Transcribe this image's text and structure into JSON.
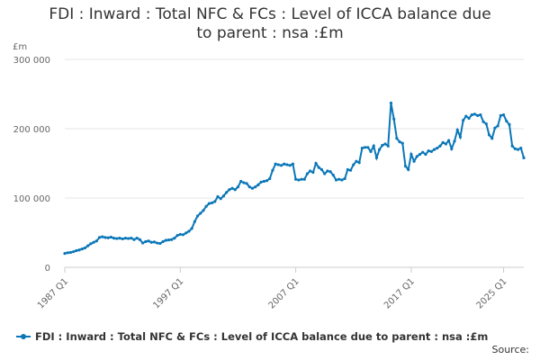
{
  "chart_data": {
    "type": "line",
    "title_line1": "FDI : Inward : Total NFC & FCs : Level of ICCA balance due",
    "title_line2": "to parent : nsa :£m",
    "ylabel": "£m",
    "ylim": [
      0,
      300000
    ],
    "yticks": [
      0,
      100000,
      200000,
      300000
    ],
    "ytick_labels": [
      "0",
      "100 000",
      "200 000",
      "300 000"
    ],
    "xtick_labels": [
      "1987 Q1",
      "1997 Q1",
      "2007 Q1",
      "2017 Q1",
      "2025 Q1"
    ],
    "grid": true,
    "legend": "bottom",
    "source": "Source:",
    "color": "#0b77b8",
    "series": [
      {
        "name": "FDI : Inward : Total NFC & FCs : Level of ICCA balance due to parent : nsa :£m",
        "points": [
          [
            "1987 Q1",
            20000
          ],
          [
            "1987 Q2",
            21000
          ],
          [
            "1987 Q3",
            21500
          ],
          [
            "1987 Q4",
            22500
          ],
          [
            "1988 Q1",
            24000
          ],
          [
            "1988 Q2",
            25000
          ],
          [
            "1988 Q3",
            26500
          ],
          [
            "1988 Q4",
            28000
          ],
          [
            "1989 Q1",
            31000
          ],
          [
            "1989 Q2",
            34000
          ],
          [
            "1989 Q3",
            36000
          ],
          [
            "1989 Q4",
            38000
          ],
          [
            "1990 Q1",
            43000
          ],
          [
            "1990 Q2",
            44000
          ],
          [
            "1990 Q3",
            43000
          ],
          [
            "1990 Q4",
            42500
          ],
          [
            "1991 Q1",
            43500
          ],
          [
            "1991 Q2",
            42000
          ],
          [
            "1991 Q3",
            41500
          ],
          [
            "1991 Q4",
            42000
          ],
          [
            "1992 Q1",
            41000
          ],
          [
            "1992 Q2",
            42000
          ],
          [
            "1992 Q3",
            41500
          ],
          [
            "1992 Q4",
            42000
          ],
          [
            "1993 Q1",
            40000
          ],
          [
            "1993 Q2",
            42000
          ],
          [
            "1993 Q3",
            40000
          ],
          [
            "1993 Q4",
            35000
          ],
          [
            "1994 Q1",
            37000
          ],
          [
            "1994 Q2",
            38000
          ],
          [
            "1994 Q3",
            36000
          ],
          [
            "1994 Q4",
            36500
          ],
          [
            "1995 Q1",
            35000
          ],
          [
            "1995 Q2",
            34500
          ],
          [
            "1995 Q3",
            37000
          ],
          [
            "1995 Q4",
            39000
          ],
          [
            "1996 Q1",
            39500
          ],
          [
            "1996 Q2",
            40000
          ],
          [
            "1996 Q3",
            42000
          ],
          [
            "1996 Q4",
            46000
          ],
          [
            "1997 Q1",
            47500
          ],
          [
            "1997 Q2",
            47000
          ],
          [
            "1997 Q3",
            49500
          ],
          [
            "1997 Q4",
            52000
          ],
          [
            "1998 Q1",
            56000
          ],
          [
            "1998 Q2",
            66000
          ],
          [
            "1998 Q3",
            74000
          ],
          [
            "1998 Q4",
            78000
          ],
          [
            "1999 Q1",
            82000
          ],
          [
            "1999 Q2",
            88000
          ],
          [
            "1999 Q3",
            92000
          ],
          [
            "1999 Q4",
            93000
          ],
          [
            "2000 Q1",
            95000
          ],
          [
            "2000 Q2",
            102000
          ],
          [
            "2000 Q3",
            99000
          ],
          [
            "2000 Q4",
            103000
          ],
          [
            "2001 Q1",
            108000
          ],
          [
            "2001 Q2",
            112000
          ],
          [
            "2001 Q3",
            114000
          ],
          [
            "2001 Q4",
            112000
          ],
          [
            "2002 Q1",
            116000
          ],
          [
            "2002 Q2",
            124000
          ],
          [
            "2002 Q3",
            122000
          ],
          [
            "2002 Q4",
            121000
          ],
          [
            "2003 Q1",
            116000
          ],
          [
            "2003 Q2",
            114000
          ],
          [
            "2003 Q3",
            116000
          ],
          [
            "2003 Q4",
            119000
          ],
          [
            "2004 Q1",
            123000
          ],
          [
            "2004 Q2",
            124000
          ],
          [
            "2004 Q3",
            125000
          ],
          [
            "2004 Q4",
            128000
          ],
          [
            "2005 Q1",
            140000
          ],
          [
            "2005 Q2",
            149000
          ],
          [
            "2005 Q3",
            148000
          ],
          [
            "2005 Q4",
            147000
          ],
          [
            "2006 Q1",
            149000
          ],
          [
            "2006 Q2",
            148000
          ],
          [
            "2006 Q3",
            147000
          ],
          [
            "2006 Q4",
            149000
          ],
          [
            "2007 Q1",
            127000
          ],
          [
            "2007 Q2",
            126000
          ],
          [
            "2007 Q3",
            127000
          ],
          [
            "2007 Q4",
            127000
          ],
          [
            "2008 Q1",
            135000
          ],
          [
            "2008 Q2",
            139000
          ],
          [
            "2008 Q3",
            137000
          ],
          [
            "2008 Q4",
            150000
          ],
          [
            "2009 Q1",
            144000
          ],
          [
            "2009 Q2",
            141000
          ],
          [
            "2009 Q3",
            135000
          ],
          [
            "2009 Q4",
            139000
          ],
          [
            "2010 Q1",
            138000
          ],
          [
            "2010 Q2",
            133000
          ],
          [
            "2010 Q3",
            126000
          ],
          [
            "2010 Q4",
            127000
          ],
          [
            "2011 Q1",
            126000
          ],
          [
            "2011 Q2",
            128000
          ],
          [
            "2011 Q3",
            141000
          ],
          [
            "2011 Q4",
            140000
          ],
          [
            "2012 Q1",
            148000
          ],
          [
            "2012 Q2",
            153000
          ],
          [
            "2012 Q3",
            151000
          ],
          [
            "2012 Q4",
            172000
          ],
          [
            "2013 Q1",
            173000
          ],
          [
            "2013 Q2",
            173000
          ],
          [
            "2013 Q3",
            167000
          ],
          [
            "2013 Q4",
            175000
          ],
          [
            "2014 Q1",
            158000
          ],
          [
            "2014 Q2",
            170000
          ],
          [
            "2014 Q3",
            176000
          ],
          [
            "2014 Q4",
            178000
          ],
          [
            "2015 Q1",
            175000
          ],
          [
            "2015 Q2",
            237000
          ],
          [
            "2015 Q3",
            214000
          ],
          [
            "2015 Q4",
            186000
          ],
          [
            "2016 Q1",
            181000
          ],
          [
            "2016 Q2",
            179000
          ],
          [
            "2016 Q3",
            146000
          ],
          [
            "2016 Q4",
            141000
          ],
          [
            "2017 Q1",
            163000
          ],
          [
            "2017 Q2",
            153000
          ],
          [
            "2017 Q3",
            160000
          ],
          [
            "2017 Q4",
            163000
          ],
          [
            "2018 Q1",
            166000
          ],
          [
            "2018 Q2",
            163000
          ],
          [
            "2018 Q3",
            168000
          ],
          [
            "2018 Q4",
            167000
          ],
          [
            "2019 Q1",
            170000
          ],
          [
            "2019 Q2",
            172000
          ],
          [
            "2019 Q3",
            175000
          ],
          [
            "2019 Q4",
            180000
          ],
          [
            "2020 Q1",
            178000
          ],
          [
            "2020 Q2",
            183000
          ],
          [
            "2020 Q3",
            171000
          ],
          [
            "2020 Q4",
            182000
          ],
          [
            "2021 Q1",
            198000
          ],
          [
            "2021 Q2",
            188000
          ],
          [
            "2021 Q3",
            212000
          ],
          [
            "2021 Q4",
            218000
          ],
          [
            "2022 Q1",
            215000
          ],
          [
            "2022 Q2",
            220000
          ],
          [
            "2022 Q3",
            221000
          ],
          [
            "2022 Q4",
            219000
          ],
          [
            "2023 Q1",
            220000
          ],
          [
            "2023 Q2",
            210000
          ],
          [
            "2023 Q3",
            207000
          ],
          [
            "2023 Q4",
            191000
          ],
          [
            "2024 Q1",
            186000
          ],
          [
            "2024 Q2",
            201000
          ],
          [
            "2024 Q3",
            204000
          ],
          [
            "2024 Q4",
            219000
          ],
          [
            "2025 Q1",
            220000
          ],
          [
            "2025 Q2",
            211000
          ],
          [
            "2025 Q3",
            206000
          ],
          [
            "2025 Q4",
            175000
          ],
          [
            "2026 Q1",
            171000
          ],
          [
            "2026 Q2",
            170000
          ],
          [
            "2026 Q3",
            172000
          ],
          [
            "2026 Q4",
            158000
          ]
        ]
      }
    ]
  }
}
